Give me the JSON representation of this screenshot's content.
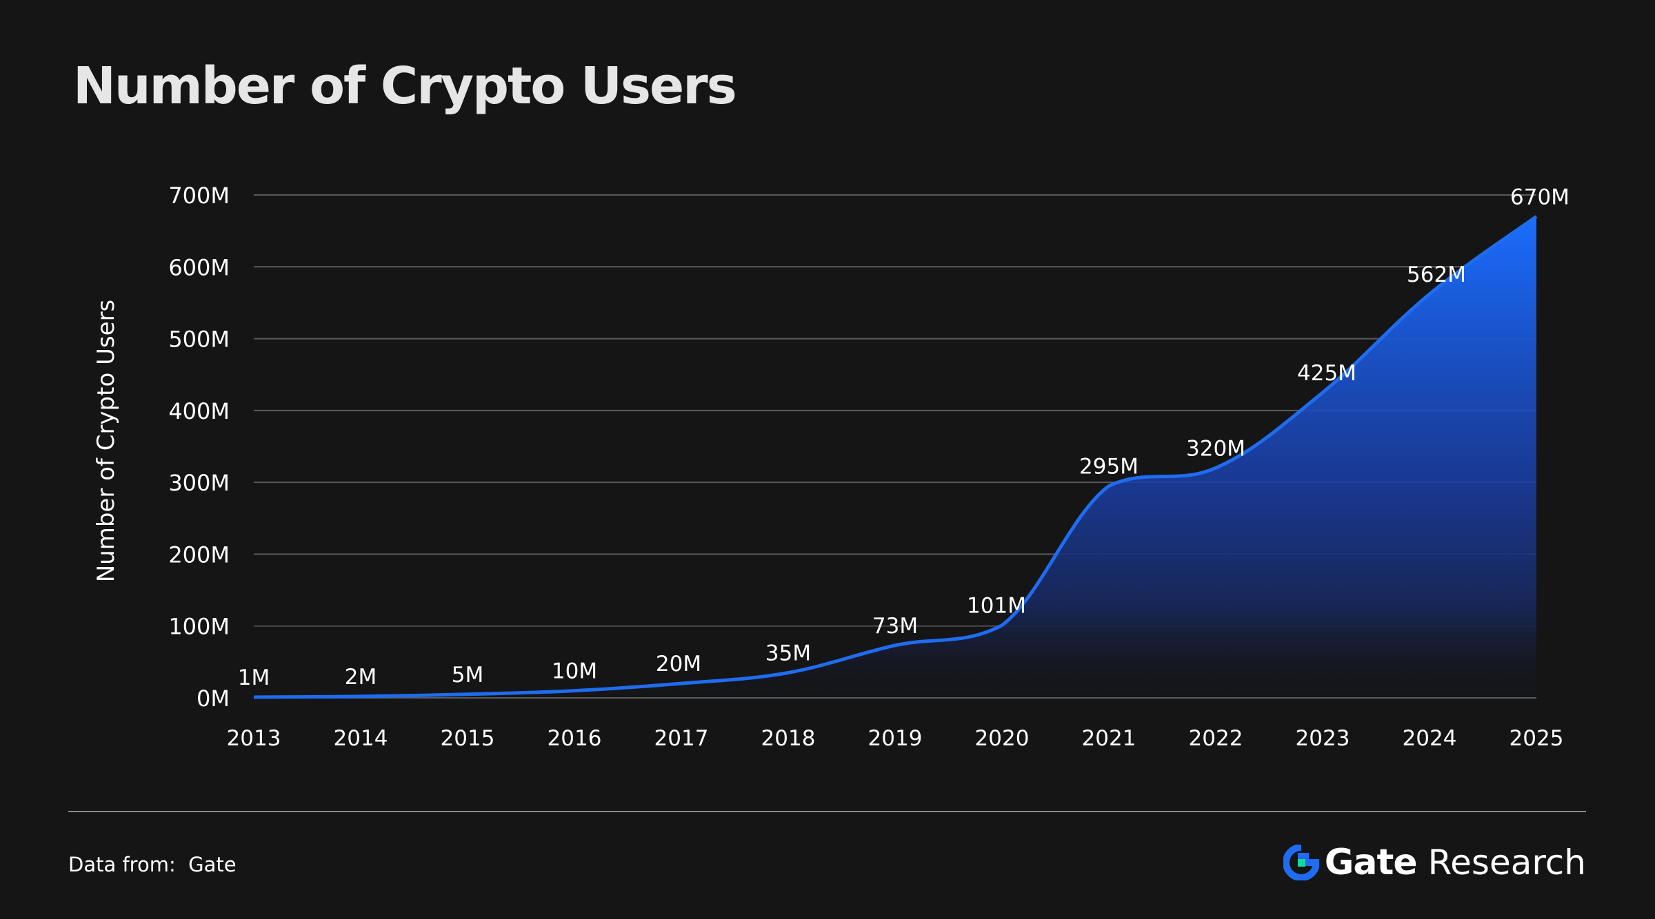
{
  "title": "Number of Crypto Users",
  "footer": {
    "source_label": "Data from:",
    "source_value": "Gate",
    "brand_name": "Gate",
    "brand_suffix": "Research"
  },
  "colors": {
    "background": "#151515",
    "line": "#1f6cf0",
    "area_top": "#1a6dff",
    "area_bottom": "#151828",
    "grid": "#5a5a5a",
    "brand_blue": "#1f6cf0",
    "brand_green": "#18d6a0"
  },
  "chart_data": {
    "type": "area",
    "title": "Number of Crypto Users",
    "ylabel": "Number of Crypto Users",
    "xlabel": "",
    "x": [
      "2013",
      "2014",
      "2015",
      "2016",
      "2017",
      "2018",
      "2019",
      "2020",
      "2021",
      "2022",
      "2023",
      "2024",
      "2025"
    ],
    "values": [
      1,
      2,
      5,
      10,
      20,
      35,
      73,
      101,
      295,
      320,
      425,
      562,
      670
    ],
    "data_labels": [
      "1M",
      "2M",
      "5M",
      "10M",
      "20M",
      "35M",
      "73M",
      "101M",
      "295M",
      "320M",
      "425M",
      "562M",
      "670M"
    ],
    "unit": "M",
    "ylim": [
      0,
      700
    ],
    "yticks": [
      0,
      100,
      200,
      300,
      400,
      500,
      600,
      700
    ],
    "ytick_labels": [
      "0M",
      "100M",
      "200M",
      "300M",
      "400M",
      "500M",
      "600M",
      "700M"
    ],
    "grid": true,
    "smooth": true
  }
}
